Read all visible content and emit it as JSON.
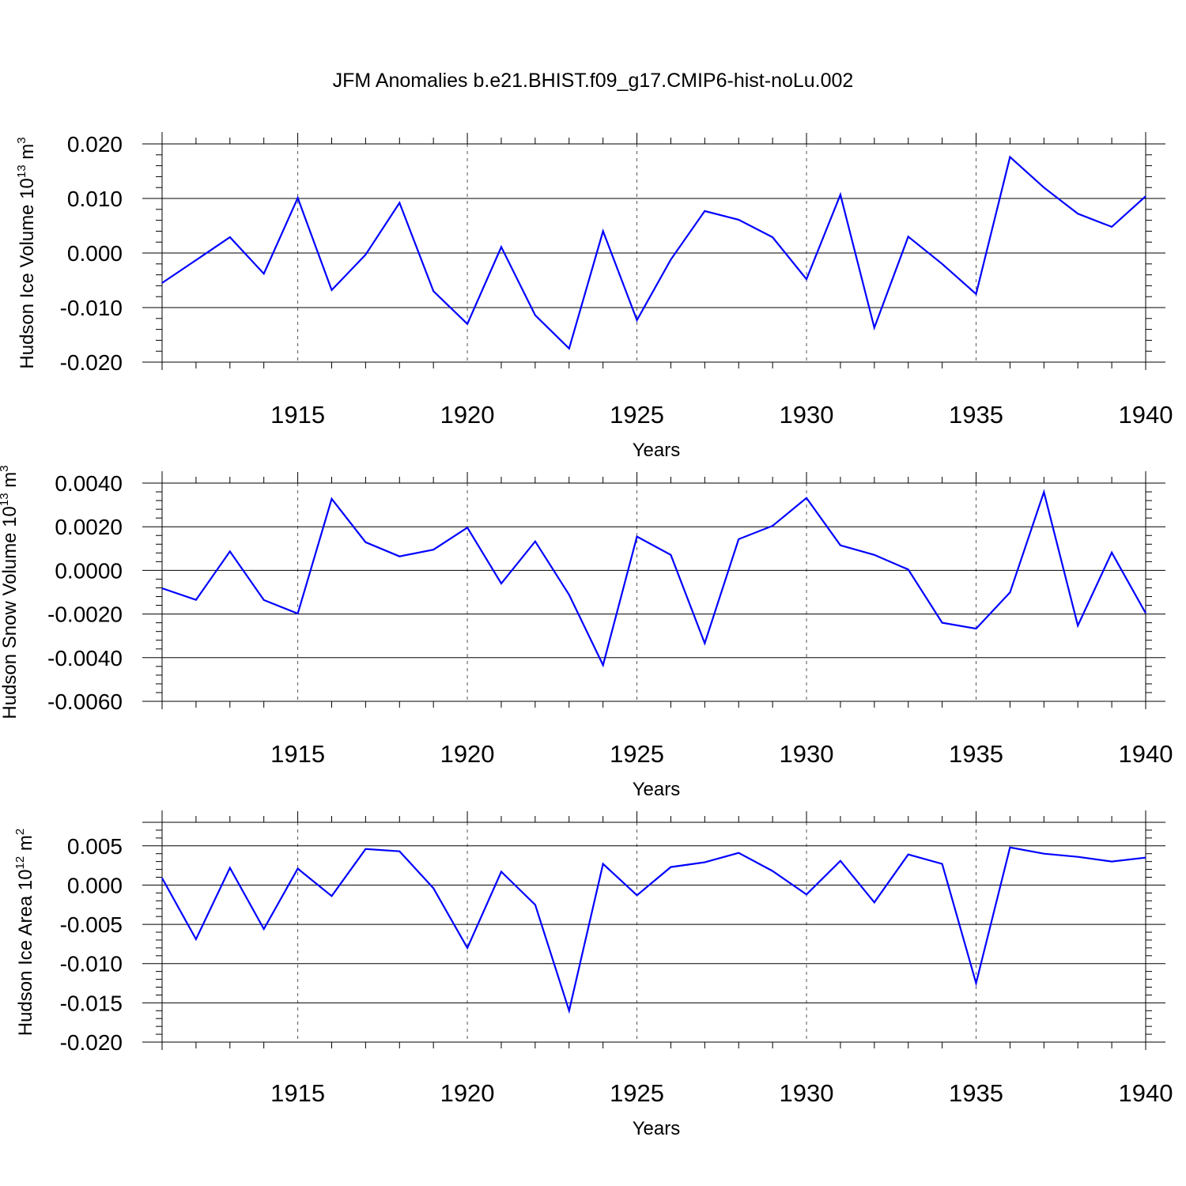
{
  "title": "JFM Anomalies b.e21.BHIST.f09_g17.CMIP6-hist-noLu.002",
  "series_color": "#0000ff",
  "chart_data": [
    {
      "type": "line",
      "name": "ice-volume",
      "ylabel": {
        "prefix": "Hudson Ice Volume 10",
        "exp": "13",
        "unit": " m",
        "unit_exp": "3"
      },
      "xlabel": "Years",
      "xlim": [
        1911,
        1940
      ],
      "ylim": [
        -0.02,
        0.02
      ],
      "yticks": [
        "0.020",
        "0.010",
        "0.000",
        "-0.010",
        "-0.020"
      ],
      "ytick_values": [
        0.02,
        0.01,
        0.0,
        -0.01,
        -0.02
      ],
      "xticks": [
        "1915",
        "1920",
        "1925",
        "1930",
        "1935",
        "1940"
      ],
      "xtick_values": [
        1915,
        1920,
        1925,
        1930,
        1935,
        1940
      ],
      "x": [
        1911,
        1912,
        1913,
        1914,
        1915,
        1916,
        1917,
        1918,
        1919,
        1920,
        1921,
        1922,
        1923,
        1924,
        1925,
        1926,
        1927,
        1928,
        1929,
        1930,
        1931,
        1932,
        1933,
        1934,
        1935,
        1936,
        1937,
        1938,
        1939,
        1940
      ],
      "values": [
        -0.0055,
        -0.0013,
        0.0029,
        -0.0038,
        0.0101,
        -0.0068,
        -0.0003,
        0.0092,
        -0.007,
        -0.013,
        0.0011,
        -0.0114,
        -0.0175,
        0.004,
        -0.0123,
        -0.0012,
        0.0077,
        0.0061,
        0.0029,
        -0.0048,
        0.0107,
        -0.0137,
        0.003,
        -0.002,
        -0.0075,
        0.0176,
        0.012,
        0.0072,
        0.0048,
        0.0104
      ]
    },
    {
      "type": "line",
      "name": "snow-volume",
      "ylabel": {
        "prefix": "Hudson Snow Volume 10",
        "exp": "13",
        "unit": " m",
        "unit_exp": "3"
      },
      "xlabel": "Years",
      "xlim": [
        1911,
        1940
      ],
      "ylim": [
        -0.006,
        0.004
      ],
      "yticks": [
        "0.0040",
        "0.0020",
        "0.0000",
        "-0.0020",
        "-0.0040",
        "-0.0060"
      ],
      "ytick_values": [
        0.004,
        0.002,
        0.0,
        -0.002,
        -0.004,
        -0.006
      ],
      "xticks": [
        "1915",
        "1920",
        "1925",
        "1930",
        "1935",
        "1940"
      ],
      "xtick_values": [
        1915,
        1920,
        1925,
        1930,
        1935,
        1940
      ],
      "x": [
        1911,
        1912,
        1913,
        1914,
        1915,
        1916,
        1917,
        1918,
        1919,
        1920,
        1921,
        1922,
        1923,
        1924,
        1925,
        1926,
        1927,
        1928,
        1929,
        1930,
        1931,
        1932,
        1933,
        1934,
        1935,
        1936,
        1937,
        1938,
        1939,
        1940
      ],
      "values": [
        -0.00082,
        -0.00135,
        0.00087,
        -0.00136,
        -0.00198,
        0.00328,
        0.00129,
        0.00064,
        0.00095,
        0.00196,
        -0.0006,
        0.00133,
        -0.00112,
        -0.00434,
        0.00155,
        0.00071,
        -0.00334,
        0.00143,
        0.00204,
        0.00332,
        0.00115,
        0.00071,
        4e-05,
        -0.0024,
        -0.00267,
        -0.00101,
        0.00359,
        -0.00253,
        0.00082,
        -0.00196
      ]
    },
    {
      "type": "line",
      "name": "ice-area",
      "ylabel": {
        "prefix": "Hudson Ice Area 10",
        "exp": "12",
        "unit": " m",
        "unit_exp": "2"
      },
      "xlabel": "Years",
      "xlim": [
        1911,
        1940
      ],
      "ylim": [
        -0.02,
        0.008
      ],
      "yticks": [
        "0.005",
        "0.000",
        "-0.005",
        "-0.010",
        "-0.015",
        "-0.020"
      ],
      "ytick_values": [
        0.005,
        0.0,
        -0.005,
        -0.01,
        -0.015,
        -0.02
      ],
      "xticks": [
        "1915",
        "1920",
        "1925",
        "1930",
        "1935",
        "1940"
      ],
      "xtick_values": [
        1915,
        1920,
        1925,
        1930,
        1935,
        1940
      ],
      "x": [
        1911,
        1912,
        1913,
        1914,
        1915,
        1916,
        1917,
        1918,
        1919,
        1920,
        1921,
        1922,
        1923,
        1924,
        1925,
        1926,
        1927,
        1928,
        1929,
        1930,
        1931,
        1932,
        1933,
        1934,
        1935,
        1936,
        1937,
        1938,
        1939,
        1940
      ],
      "values": [
        0.0009,
        -0.0069,
        0.0022,
        -0.0056,
        0.0021,
        -0.0014,
        0.0046,
        0.0043,
        -0.0004,
        -0.008,
        0.0017,
        -0.0025,
        -0.016,
        0.0027,
        -0.0013,
        0.0023,
        0.0029,
        0.0041,
        0.0018,
        -0.0012,
        0.0031,
        -0.0022,
        0.0039,
        0.0027,
        -0.0125,
        0.0048,
        0.004,
        0.0036,
        0.003,
        0.0035
      ]
    }
  ]
}
